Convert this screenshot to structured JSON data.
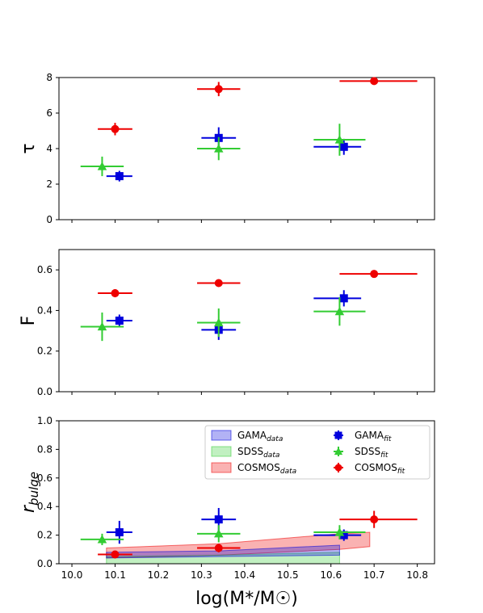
{
  "chart_data": {
    "type": "scatter",
    "xlabel": "log(M*/M☉)",
    "x_ticks": [
      "10.0",
      "10.1",
      "10.2",
      "10.3",
      "10.4",
      "10.5",
      "10.6",
      "10.7",
      "10.8"
    ],
    "xlim": [
      9.97,
      10.84
    ],
    "colors": {
      "GAMA": "#0000dd",
      "SDSS": "#33cc33",
      "COSMOS": "#ee0000"
    },
    "panels": [
      {
        "ylabel": "τ",
        "ylim": [
          0,
          8
        ],
        "y_ticks": [
          "0",
          "2",
          "4",
          "6",
          "8"
        ],
        "y_tick_values": [
          0,
          2,
          4,
          6,
          8
        ],
        "series": [
          {
            "name": "GAMA",
            "subscript": "fit",
            "marker": "square",
            "points": [
              {
                "x": 10.11,
                "xerr": [
                  0.03,
                  0.03
                ],
                "y": 2.45,
                "yerr": [
                  0.3,
                  0.3
                ]
              },
              {
                "x": 10.34,
                "xerr": [
                  0.04,
                  0.04
                ],
                "y": 4.6,
                "yerr": [
                  0.6,
                  0.6
                ]
              },
              {
                "x": 10.63,
                "xerr": [
                  0.07,
                  0.04
                ],
                "y": 4.1,
                "yerr": [
                  0.45,
                  0.45
                ]
              }
            ]
          },
          {
            "name": "SDSS",
            "subscript": "fit",
            "marker": "triangle",
            "points": [
              {
                "x": 10.07,
                "xerr": [
                  0.05,
                  0.05
                ],
                "y": 3.0,
                "yerr": [
                  0.55,
                  0.55
                ]
              },
              {
                "x": 10.34,
                "xerr": [
                  0.05,
                  0.05
                ],
                "y": 4.0,
                "yerr": [
                  0.65,
                  0.65
                ]
              },
              {
                "x": 10.62,
                "xerr": [
                  0.06,
                  0.06
                ],
                "y": 4.5,
                "yerr": [
                  0.9,
                  0.9
                ]
              }
            ]
          },
          {
            "name": "COSMOS",
            "subscript": "fit",
            "marker": "circle",
            "points": [
              {
                "x": 10.1,
                "xerr": [
                  0.04,
                  0.04
                ],
                "y": 5.1,
                "yerr": [
                  0.35,
                  0.35
                ]
              },
              {
                "x": 10.34,
                "xerr": [
                  0.05,
                  0.05
                ],
                "y": 7.35,
                "yerr": [
                  0.4,
                  0.4
                ]
              },
              {
                "x": 10.7,
                "xerr": [
                  0.08,
                  0.1
                ],
                "y": 7.8,
                "yerr": [
                  0.15,
                  0.15
                ]
              }
            ]
          }
        ]
      },
      {
        "ylabel": "F",
        "ylim": [
          0,
          0.7
        ],
        "y_ticks": [
          "0.0",
          "0.2",
          "0.4",
          "0.6"
        ],
        "y_tick_values": [
          0,
          0.2,
          0.4,
          0.6
        ],
        "series": [
          {
            "name": "GAMA",
            "subscript": "fit",
            "marker": "square",
            "points": [
              {
                "x": 10.11,
                "xerr": [
                  0.03,
                  0.03
                ],
                "y": 0.35,
                "yerr": [
                  0.03,
                  0.03
                ]
              },
              {
                "x": 10.34,
                "xerr": [
                  0.04,
                  0.04
                ],
                "y": 0.305,
                "yerr": [
                  0.05,
                  0.05
                ]
              },
              {
                "x": 10.63,
                "xerr": [
                  0.07,
                  0.04
                ],
                "y": 0.46,
                "yerr": [
                  0.04,
                  0.04
                ]
              }
            ]
          },
          {
            "name": "SDSS",
            "subscript": "fit",
            "marker": "triangle",
            "points": [
              {
                "x": 10.07,
                "xerr": [
                  0.05,
                  0.05
                ],
                "y": 0.32,
                "yerr": [
                  0.07,
                  0.07
                ]
              },
              {
                "x": 10.34,
                "xerr": [
                  0.05,
                  0.05
                ],
                "y": 0.34,
                "yerr": [
                  0.07,
                  0.07
                ]
              },
              {
                "x": 10.62,
                "xerr": [
                  0.06,
                  0.06
                ],
                "y": 0.395,
                "yerr": [
                  0.07,
                  0.07
                ]
              }
            ]
          },
          {
            "name": "COSMOS",
            "subscript": "fit",
            "marker": "circle",
            "points": [
              {
                "x": 10.1,
                "xerr": [
                  0.04,
                  0.04
                ],
                "y": 0.485,
                "yerr": [
                  0.02,
                  0.02
                ]
              },
              {
                "x": 10.34,
                "xerr": [
                  0.05,
                  0.05
                ],
                "y": 0.535,
                "yerr": [
                  0.01,
                  0.01
                ]
              },
              {
                "x": 10.7,
                "xerr": [
                  0.08,
                  0.1
                ],
                "y": 0.58,
                "yerr": [
                  0.005,
                  0.005
                ]
              }
            ]
          }
        ]
      },
      {
        "ylabel": "r",
        "ylabel_sub": "bulge",
        "ylim": [
          0,
          1.0
        ],
        "y_ticks": [
          "0.0",
          "0.2",
          "0.4",
          "0.6",
          "0.8",
          "1.0"
        ],
        "y_tick_values": [
          0,
          0.2,
          0.4,
          0.6,
          0.8,
          1.0
        ],
        "show_x_ticklabels": true,
        "bands": [
          {
            "name": "COSMOS",
            "subscript": "data",
            "x": [
              10.08,
              10.34,
              10.62,
              10.69
            ],
            "lower": [
              0.04,
              0.06,
              0.1,
              0.12
            ],
            "upper": [
              0.11,
              0.14,
              0.21,
              0.22
            ]
          },
          {
            "name": "SDSS",
            "subscript": "data",
            "x": [
              10.08,
              10.34,
              10.62
            ],
            "lower": [
              0.0,
              0.0,
              0.0
            ],
            "upper": [
              0.05,
              0.06,
              0.08
            ]
          },
          {
            "name": "GAMA",
            "subscript": "data",
            "x": [
              10.08,
              10.34,
              10.62
            ],
            "lower": [
              0.04,
              0.05,
              0.06
            ],
            "upper": [
              0.08,
              0.09,
              0.13
            ]
          }
        ],
        "series": [
          {
            "name": "GAMA",
            "subscript": "fit",
            "marker": "square",
            "points": [
              {
                "x": 10.11,
                "xerr": [
                  0.03,
                  0.03
                ],
                "y": 0.22,
                "yerr": [
                  0.08,
                  0.08
                ]
              },
              {
                "x": 10.34,
                "xerr": [
                  0.04,
                  0.04
                ],
                "y": 0.31,
                "yerr": [
                  0.08,
                  0.08
                ]
              },
              {
                "x": 10.63,
                "xerr": [
                  0.07,
                  0.04
                ],
                "y": 0.2,
                "yerr": [
                  0.04,
                  0.04
                ]
              }
            ]
          },
          {
            "name": "SDSS",
            "subscript": "fit",
            "marker": "triangle",
            "points": [
              {
                "x": 10.07,
                "xerr": [
                  0.05,
                  0.05
                ],
                "y": 0.17,
                "yerr": [
                  0.04,
                  0.04
                ]
              },
              {
                "x": 10.34,
                "xerr": [
                  0.05,
                  0.05
                ],
                "y": 0.21,
                "yerr": [
                  0.06,
                  0.06
                ]
              },
              {
                "x": 10.62,
                "xerr": [
                  0.06,
                  0.06
                ],
                "y": 0.22,
                "yerr": [
                  0.05,
                  0.05
                ]
              }
            ]
          },
          {
            "name": "COSMOS",
            "subscript": "fit",
            "marker": "circle",
            "points": [
              {
                "x": 10.1,
                "xerr": [
                  0.04,
                  0.04
                ],
                "y": 0.065,
                "yerr": [
                  0.01,
                  0.01
                ]
              },
              {
                "x": 10.34,
                "xerr": [
                  0.05,
                  0.05
                ],
                "y": 0.11,
                "yerr": [
                  0.03,
                  0.03
                ]
              },
              {
                "x": 10.7,
                "xerr": [
                  0.08,
                  0.1
                ],
                "y": 0.31,
                "yerr": [
                  0.06,
                  0.06
                ]
              }
            ]
          }
        ],
        "legend": {
          "placement": "upper-right",
          "entries": [
            {
              "label": "GAMA",
              "sub": "data",
              "kind": "band",
              "color": "GAMA"
            },
            {
              "label": "GAMA",
              "sub": "fit",
              "kind": "marker",
              "marker": "square",
              "color": "GAMA"
            },
            {
              "label": "SDSS",
              "sub": "data",
              "kind": "band",
              "color": "SDSS"
            },
            {
              "label": "SDSS",
              "sub": "fit",
              "kind": "marker",
              "marker": "triangle",
              "color": "SDSS"
            },
            {
              "label": "COSMOS",
              "sub": "data",
              "kind": "band",
              "color": "COSMOS"
            },
            {
              "label": "COSMOS",
              "sub": "fit",
              "kind": "marker",
              "marker": "circle",
              "color": "COSMOS"
            }
          ]
        }
      }
    ]
  }
}
